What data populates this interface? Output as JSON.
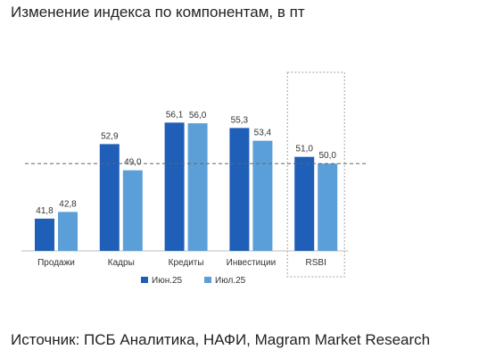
{
  "page": {
    "title": "Изменение индекса по компонентам, в пт",
    "source": "Источник: ПСБ Аналитика, НАФИ, Magram Market Research"
  },
  "chart_data": {
    "type": "bar",
    "categories": [
      "Продажи",
      "Кадры",
      "Кредиты",
      "Инвестиции",
      "RSBI"
    ],
    "series": [
      {
        "name": "Июн.25",
        "values": [
          41.8,
          52.9,
          56.1,
          55.3,
          51.0
        ],
        "labels": [
          "41,8",
          "52,9",
          "56,1",
          "55,3",
          "51,0"
        ],
        "color": "#1f5fb8"
      },
      {
        "name": "Июл.25",
        "values": [
          42.8,
          49.0,
          56.0,
          53.4,
          50.0
        ],
        "labels": [
          "42,8",
          "49,0",
          "56,0",
          "53,4",
          "50,0"
        ],
        "color": "#5b9fd8"
      }
    ],
    "reference_line": 50,
    "reference_line_style": "dashed",
    "highlighted_category": "RSBI",
    "ylim": [
      37,
      60
    ],
    "grid": false,
    "legend_position": "bottom",
    "axis_color": "#bfbfbf",
    "label_color": "#333333"
  }
}
